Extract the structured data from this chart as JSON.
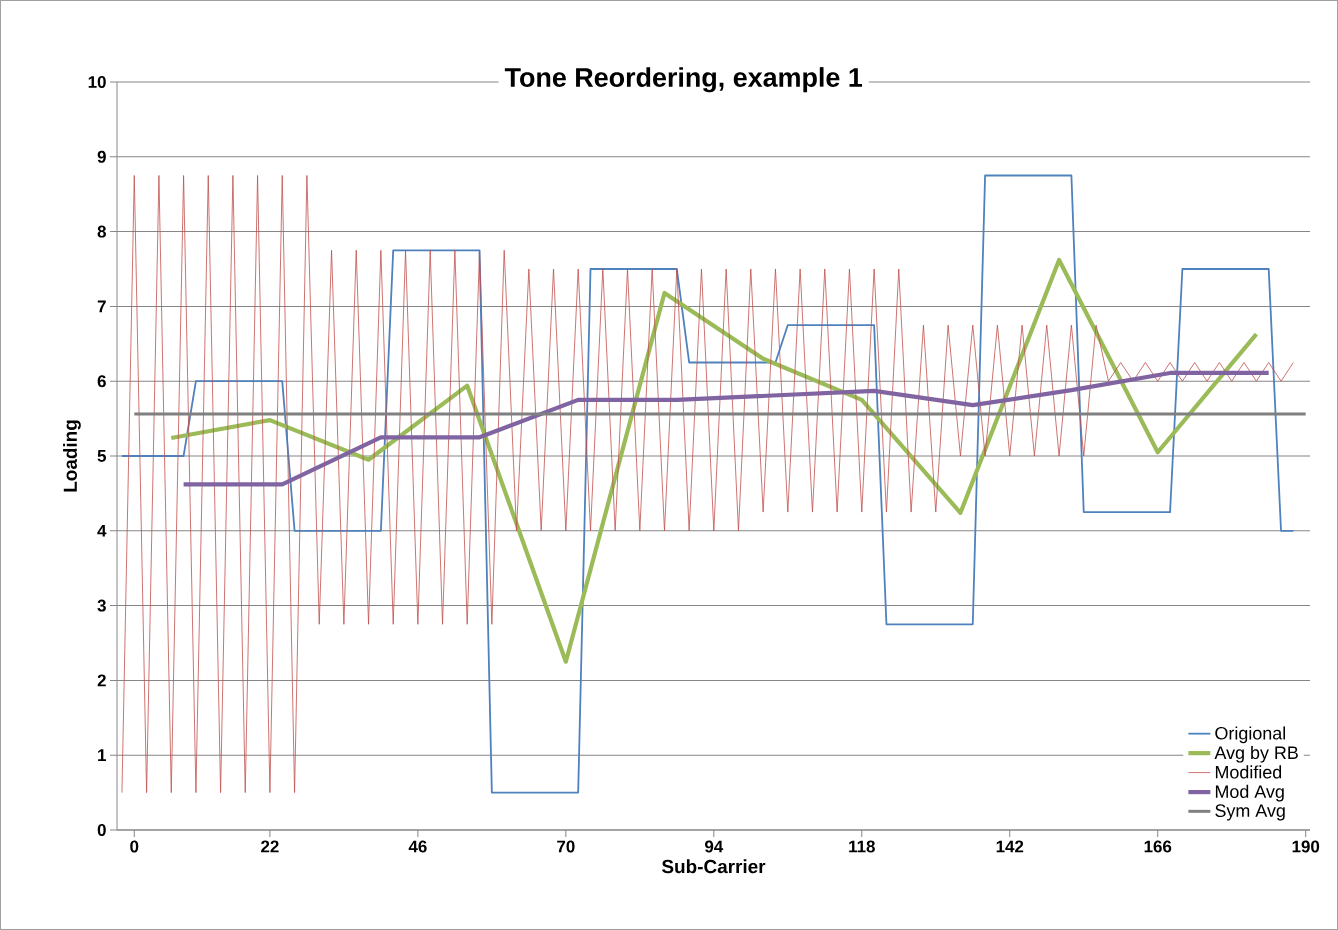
{
  "chart_data": {
    "type": "line",
    "title": "Tone Reordering, example 1",
    "xlabel": "Sub-Carrier",
    "ylabel": "Loading",
    "xlim": [
      -2.8,
      190.7
    ],
    "ylim": [
      0,
      10
    ],
    "xticks": [
      0,
      22,
      46,
      70,
      94,
      118,
      142,
      166,
      190
    ],
    "yticks": [
      0,
      1,
      2,
      3,
      4,
      5,
      6,
      7,
      8,
      9,
      10
    ],
    "grid": "y",
    "legend": "bottom right",
    "marker": "none",
    "line_style": "solid",
    "series": [
      {
        "name": "Origional",
        "color": "#4f81bd",
        "x": [
          -2,
          8,
          10,
          24,
          26,
          40,
          42,
          56,
          58,
          72,
          74,
          88,
          90,
          104,
          106,
          120,
          122,
          136,
          138,
          152,
          154,
          168,
          170,
          184,
          186,
          188
        ],
        "values": [
          5,
          5,
          6,
          6,
          4,
          4,
          7.75,
          7.75,
          0.5,
          0.5,
          7.5,
          7.5,
          6.25,
          6.25,
          6.75,
          6.75,
          2.75,
          2.75,
          8.75,
          8.75,
          4.25,
          4.25,
          7.5,
          7.5,
          4,
          4
        ]
      },
      {
        "name": "Avg by RB",
        "color": "#9bbb59",
        "x": [
          6,
          22,
          38,
          54,
          70,
          86,
          102,
          118,
          134,
          150,
          166,
          182
        ],
        "values": [
          5.24,
          5.48,
          4.95,
          5.94,
          2.25,
          7.18,
          6.3,
          5.75,
          4.24,
          7.62,
          5.05,
          6.63
        ]
      },
      {
        "name": "Modified",
        "color": "#c0504d",
        "x": [
          -2,
          0,
          2,
          4,
          6,
          8,
          10,
          12,
          14,
          16,
          18,
          20,
          22,
          24,
          26,
          28,
          30,
          32,
          34,
          36,
          38,
          40,
          42,
          44,
          46,
          48,
          50,
          52,
          54,
          56,
          58,
          60,
          62,
          64,
          66,
          68,
          70,
          72,
          74,
          76,
          78,
          80,
          82,
          84,
          86,
          88,
          90,
          92,
          94,
          96,
          98,
          100,
          102,
          104,
          106,
          108,
          110,
          112,
          114,
          116,
          118,
          120,
          122,
          124,
          126,
          128,
          130,
          132,
          134,
          136,
          138,
          140,
          142,
          144,
          146,
          148,
          150,
          152,
          154,
          156,
          158,
          160,
          162,
          164,
          166,
          168,
          170,
          172,
          174,
          176,
          178,
          180,
          182,
          184,
          186,
          188
        ],
        "values": [
          0.5,
          8.75,
          0.5,
          8.75,
          0.5,
          8.75,
          0.5,
          8.75,
          0.5,
          8.75,
          0.5,
          8.75,
          0.5,
          8.75,
          0.5,
          8.75,
          2.75,
          7.75,
          2.75,
          7.75,
          2.75,
          7.75,
          2.75,
          7.75,
          2.75,
          7.75,
          2.75,
          7.75,
          2.75,
          7.75,
          2.75,
          7.75,
          4,
          7.5,
          4,
          7.5,
          4,
          7.5,
          4,
          7.5,
          4,
          7.5,
          4,
          7.5,
          4,
          7.5,
          4,
          7.5,
          4,
          7.5,
          4,
          7.5,
          4.25,
          7.5,
          4.25,
          7.5,
          4.25,
          7.5,
          4.25,
          7.5,
          4.25,
          7.5,
          4.25,
          7.5,
          4.25,
          6.75,
          4.25,
          6.75,
          5,
          6.75,
          5,
          6.75,
          5,
          6.75,
          5,
          6.75,
          5,
          6.75,
          5,
          6.75,
          6,
          6.25,
          6,
          6.25,
          6,
          6.25,
          6,
          6.25,
          6,
          6.25,
          6,
          6.25,
          6,
          6.25,
          6,
          6.25
        ]
      },
      {
        "name": "Mod Avg",
        "color": "#8064a2",
        "x": [
          8,
          24,
          40,
          56,
          72,
          88,
          104,
          120,
          136,
          152,
          168,
          184
        ],
        "values": [
          4.62,
          4.62,
          5.25,
          5.25,
          5.75,
          5.75,
          5.81,
          5.87,
          5.68,
          5.88,
          6.11,
          6.11
        ]
      },
      {
        "name": "Sym Avg",
        "color": "#808080",
        "x": [
          0,
          190
        ],
        "values": [
          5.56,
          5.56
        ]
      }
    ]
  }
}
